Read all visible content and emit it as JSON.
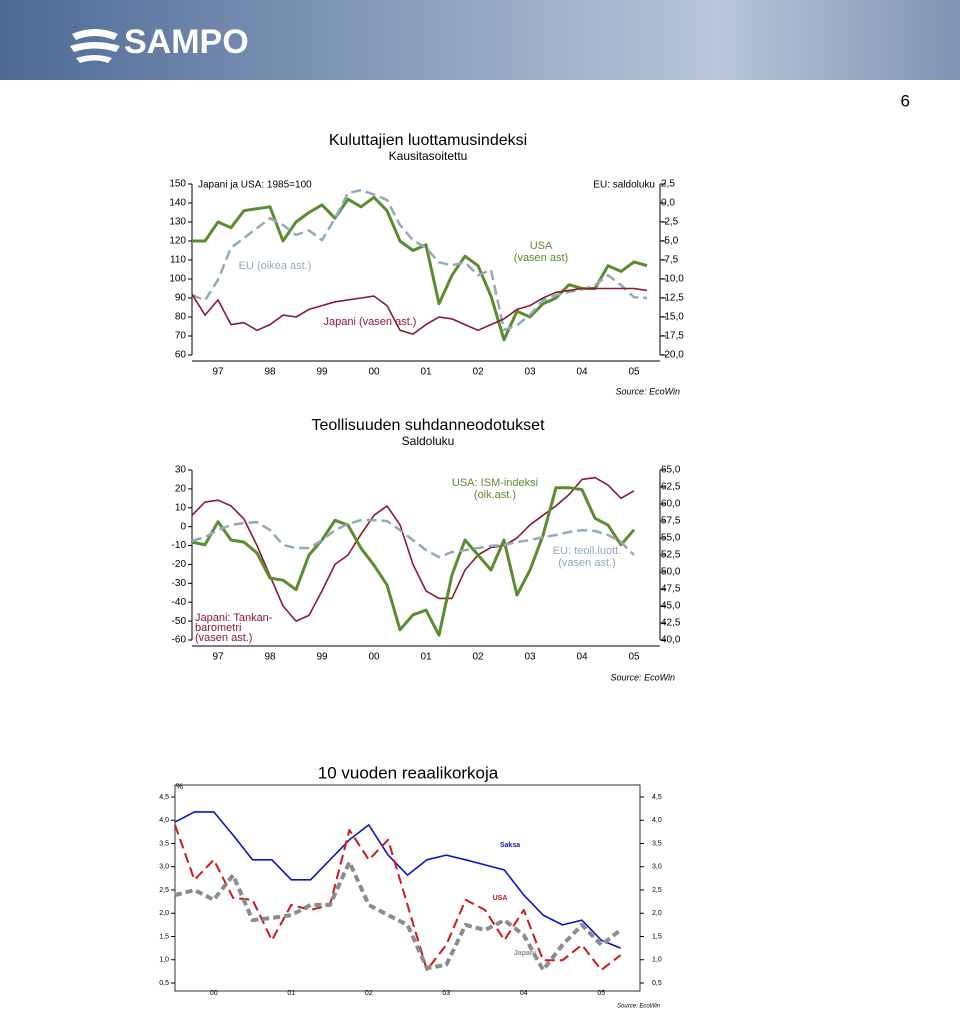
{
  "header": {
    "logo": "SAMPO",
    "page_number": "6"
  },
  "chart_data": [
    {
      "type": "line",
      "title": "Kuluttajien luottamusindeksi",
      "subtitle": "Kausitasoitettu",
      "notes": [
        "Japani ja USA: 1985=100",
        "EU: saldoluku"
      ],
      "source": "Source: EcoWin",
      "x": [
        1997,
        1997.25,
        1997.5,
        1997.75,
        1998,
        1998.25,
        1998.5,
        1998.75,
        1999,
        1999.25,
        1999.5,
        1999.75,
        2000,
        2000.25,
        2000.5,
        2000.75,
        2001,
        2001.25,
        2001.5,
        2001.75,
        2002,
        2002.25,
        2002.5,
        2002.75,
        2003,
        2003.25,
        2003.5,
        2003.75,
        2004,
        2004.25,
        2004.5,
        2004.75,
        2005,
        2005.25,
        2005.5,
        2005.75
      ],
      "xlim": [
        1997,
        2006
      ],
      "xticks": [
        {
          "value": 1997.5,
          "label": "97"
        },
        {
          "value": 1998.5,
          "label": "98"
        },
        {
          "value": 1999.5,
          "label": "99"
        },
        {
          "value": 2000.5,
          "label": "00"
        },
        {
          "value": 2001.5,
          "label": "01"
        },
        {
          "value": 2002.5,
          "label": "02"
        },
        {
          "value": 2003.5,
          "label": "03"
        },
        {
          "value": 2004.5,
          "label": "04"
        },
        {
          "value": 2005.5,
          "label": "05"
        }
      ],
      "ylim": [
        60,
        150
      ],
      "yticks": [
        60,
        70,
        80,
        90,
        100,
        110,
        120,
        130,
        140,
        150
      ],
      "y2lim": [
        -20,
        2.5
      ],
      "y2ticks": [
        {
          "value": 2.5,
          "label": "2,5"
        },
        {
          "value": 0,
          "label": "0,0"
        },
        {
          "value": -2.5,
          "label": "-2,5"
        },
        {
          "value": -5,
          "label": "-5,0"
        },
        {
          "value": -7.5,
          "label": "-7,5"
        },
        {
          "value": -10,
          "label": "-10,0"
        },
        {
          "value": -12.5,
          "label": "-12,5"
        },
        {
          "value": -15,
          "label": "-15,0"
        },
        {
          "value": -17.5,
          "label": "-17,5"
        },
        {
          "value": -20,
          "label": "-20,0"
        }
      ],
      "series": [
        {
          "label": [
            "USA",
            "(vasen ast)"
          ],
          "color": "#5b8c2f",
          "width": 3,
          "values": [
            120,
            120,
            130,
            127,
            136,
            137,
            138,
            120,
            130,
            135,
            139,
            132,
            142,
            138,
            143,
            136,
            120,
            115,
            118,
            87,
            102,
            112,
            107,
            91,
            68,
            83,
            80,
            87,
            90,
            97,
            95,
            95,
            107,
            104,
            109,
            107
          ]
        },
        {
          "label": [
            "EU (oikea ast.)"
          ],
          "color": "#92aab9",
          "width": 2.5,
          "dash": true,
          "axis": "y2",
          "values": [
            -12.1,
            -12.8,
            -10.1,
            -5.9,
            -4.6,
            -3.3,
            -2.0,
            -2.9,
            -4.2,
            -3.6,
            -4.9,
            -2.0,
            1.3,
            1.7,
            1.1,
            0.4,
            -2.9,
            -4.9,
            -5.9,
            -7.8,
            -8.2,
            -7.8,
            -9.5,
            -8.8,
            -16.7,
            -16.1,
            -14.7,
            -12.8,
            -12.1,
            -11.7,
            -11.4,
            -10.8,
            -9.5,
            -10.8,
            -12.4,
            -12.5
          ]
        },
        {
          "label": [
            "Japani (vasen ast.)"
          ],
          "color": "#8b1a2e",
          "width": 1.6,
          "values": [
            92,
            81,
            89,
            76,
            77,
            73,
            76,
            81,
            80,
            84,
            86,
            88,
            89,
            90,
            91,
            86,
            73,
            71,
            76,
            80,
            79,
            76,
            73,
            76,
            79,
            84,
            86,
            90,
            93,
            94,
            95,
            95,
            95,
            95,
            95,
            94
          ]
        }
      ]
    },
    {
      "type": "line",
      "title": "Teollisuuden suhdanneodotukset",
      "subtitle": "Saldoluku",
      "notes": [],
      "source": "Source: EcoWin",
      "x": [
        1997,
        1997.25,
        1997.5,
        1997.75,
        1998,
        1998.25,
        1998.5,
        1998.75,
        1999,
        1999.25,
        1999.5,
        1999.75,
        2000,
        2000.25,
        2000.5,
        2000.75,
        2001,
        2001.25,
        2001.5,
        2001.75,
        2002,
        2002.25,
        2002.5,
        2002.75,
        2003,
        2003.25,
        2003.5,
        2003.75,
        2004,
        2004.25,
        2004.5,
        2004.75,
        2005,
        2005.25,
        2005.5
      ],
      "xlim": [
        1997,
        2006
      ],
      "xticks": [
        {
          "value": 1997.5,
          "label": "97"
        },
        {
          "value": 1998.5,
          "label": "98"
        },
        {
          "value": 1999.5,
          "label": "99"
        },
        {
          "value": 2000.5,
          "label": "00"
        },
        {
          "value": 2001.5,
          "label": "01"
        },
        {
          "value": 2002.5,
          "label": "02"
        },
        {
          "value": 2003.5,
          "label": "03"
        },
        {
          "value": 2004.5,
          "label": "04"
        },
        {
          "value": 2005.5,
          "label": "05"
        }
      ],
      "ylim": [
        -60,
        30
      ],
      "yticks": [
        -60,
        -50,
        -40,
        -30,
        -20,
        -10,
        0,
        10,
        20,
        30
      ],
      "y2lim": [
        40,
        65
      ],
      "y2ticks": [
        {
          "value": 65,
          "label": "65,0"
        },
        {
          "value": 62.5,
          "label": "62,5"
        },
        {
          "value": 60,
          "label": "60,0"
        },
        {
          "value": 57.5,
          "label": "57,5"
        },
        {
          "value": 55,
          "label": "55,0"
        },
        {
          "value": 52.5,
          "label": "52,5"
        },
        {
          "value": 50,
          "label": "50,0"
        },
        {
          "value": 47.5,
          "label": "47,5"
        },
        {
          "value": 45,
          "label": "45,0"
        },
        {
          "value": 42.5,
          "label": "42,5"
        },
        {
          "value": 40,
          "label": "40,0"
        }
      ],
      "series": [
        {
          "label": [
            "Japani: Tankan-",
            "barometri",
            "(vasen ast.)"
          ],
          "color": "#8b1a2e",
          "width": 1.6,
          "values": [
            6,
            13,
            14,
            11,
            4,
            -10,
            -26,
            -42,
            -50,
            -47,
            -34,
            -20,
            -15,
            -4,
            6,
            11,
            1,
            -20,
            -34,
            -38,
            -38,
            -23,
            -15,
            -11,
            -10,
            -6,
            1,
            6,
            11,
            17,
            25,
            26,
            22,
            15,
            19
          ]
        },
        {
          "label": [
            "USA: ISM-indeksi",
            "(oik.ast.)"
          ],
          "color": "#5b8c2f",
          "width": 3,
          "axis": "y2",
          "values": [
            54.4,
            54.0,
            57.4,
            54.7,
            54.4,
            52.8,
            49.1,
            48.8,
            47.4,
            52.5,
            54.7,
            57.6,
            56.9,
            53.5,
            51.0,
            48.1,
            41.5,
            43.7,
            44.4,
            40.7,
            49.6,
            54.7,
            52.5,
            50.3,
            54.7,
            46.6,
            50.3,
            55.4,
            62.4,
            62.4,
            62.1,
            57.9,
            56.9,
            54.0,
            56.2
          ]
        },
        {
          "label": [
            "EU: teoll.luott.",
            "(vasen ast.)"
          ],
          "color": "#92aab9",
          "width": 2.5,
          "dash": true,
          "values": [
            -7.6,
            -5.5,
            -1.8,
            0.9,
            1.9,
            2.4,
            -1.8,
            -9.7,
            -11.3,
            -11.3,
            -7.1,
            -1.8,
            1.4,
            3.5,
            3.5,
            3.0,
            -1.8,
            -7.1,
            -12.4,
            -16.1,
            -13.4,
            -12.4,
            -11.3,
            -10.2,
            -9.7,
            -8.1,
            -7.1,
            -5.5,
            -4.4,
            -2.8,
            -1.8,
            -2.3,
            -4.4,
            -8.1,
            -15.0
          ]
        }
      ]
    },
    {
      "type": "line",
      "title": "10 vuoden reaalikorkoja",
      "unit": "%",
      "source": "Source: EcoWin",
      "notes": [],
      "x": [
        2000,
        2000.25,
        2000.5,
        2000.75,
        2001,
        2001.25,
        2001.5,
        2001.75,
        2002,
        2002.25,
        2002.5,
        2002.75,
        2003,
        2003.25,
        2003.5,
        2003.75,
        2004,
        2004.25,
        2004.5,
        2004.75,
        2005,
        2005.25,
        2005.5,
        2005.75
      ],
      "xlim": [
        2000,
        2006
      ],
      "xticks": [
        {
          "value": 2000.5,
          "label": "00"
        },
        {
          "value": 2001.5,
          "label": "01"
        },
        {
          "value": 2002.5,
          "label": "02"
        },
        {
          "value": 2003.5,
          "label": "03"
        },
        {
          "value": 2004.5,
          "label": "04"
        },
        {
          "value": 2005.5,
          "label": "05"
        }
      ],
      "ylim": [
        0.5,
        4.5
      ],
      "yticks": [
        {
          "value": 0.5,
          "label": "0,5"
        },
        {
          "value": 1,
          "label": "1,0"
        },
        {
          "value": 1.5,
          "label": "1,5"
        },
        {
          "value": 2,
          "label": "2,0"
        },
        {
          "value": 2.5,
          "label": "2,5"
        },
        {
          "value": 3,
          "label": "3,0"
        },
        {
          "value": 3.5,
          "label": "3,5"
        },
        {
          "value": 4,
          "label": "4,0"
        },
        {
          "value": 4.5,
          "label": "4,5"
        }
      ],
      "series": [
        {
          "label": [
            "Saksa"
          ],
          "color": "#0a14c8",
          "width": 1.6,
          "values": [
            3.96,
            4.18,
            4.18,
            3.68,
            3.15,
            3.15,
            2.72,
            2.72,
            3.15,
            3.58,
            3.9,
            3.25,
            2.82,
            3.15,
            3.25,
            3.15,
            3.04,
            2.93,
            2.39,
            1.96,
            1.75,
            1.85,
            1.42,
            1.25
          ]
        },
        {
          "label": [
            "USA"
          ],
          "color": "#d01818",
          "width": 2,
          "dash": true,
          "values": [
            3.9,
            2.72,
            3.15,
            2.33,
            2.29,
            1.42,
            2.18,
            2.07,
            2.18,
            3.79,
            3.15,
            3.58,
            2.18,
            0.78,
            1.32,
            2.29,
            2.07,
            1.42,
            2.07,
            0.99,
            0.99,
            1.32,
            0.78,
            1.1
          ]
        },
        {
          "label": [
            "Japani"
          ],
          "color": "#8c8c8c",
          "width": 4,
          "dash": true,
          "values": [
            2.39,
            2.5,
            2.29,
            2.82,
            1.85,
            1.9,
            1.96,
            2.18,
            2.18,
            3.1,
            2.18,
            1.96,
            1.75,
            0.82,
            0.89,
            1.75,
            1.64,
            1.85,
            1.53,
            0.78,
            1.32,
            1.75,
            1.32,
            1.64
          ]
        }
      ]
    }
  ]
}
